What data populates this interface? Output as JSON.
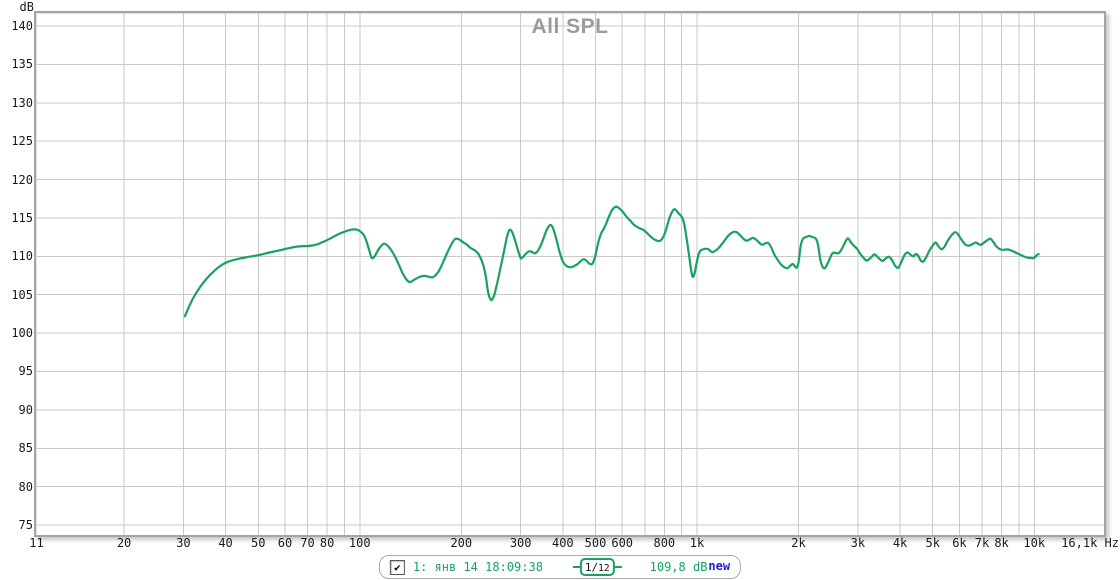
{
  "window": {
    "title": "All SPL"
  },
  "axes": {
    "y": {
      "unit": "dB",
      "view_min": 73.7,
      "view_max": 141.7,
      "tick_labels": [
        140,
        135,
        130,
        125,
        120,
        115,
        110,
        105,
        100,
        95,
        90,
        85,
        80,
        75
      ]
    },
    "x": {
      "unit": "Hz",
      "scale": "log",
      "min_hz": 11,
      "max_hz": 16100,
      "gridlines_hz": [
        20,
        30,
        40,
        50,
        60,
        70,
        80,
        90,
        100,
        200,
        300,
        400,
        500,
        600,
        700,
        800,
        900,
        1000,
        2000,
        3000,
        4000,
        5000,
        6000,
        7000,
        8000,
        9000,
        10000
      ],
      "ticks": [
        {
          "hz": 11,
          "label": "11"
        },
        {
          "hz": 20,
          "label": "20"
        },
        {
          "hz": 30,
          "label": "30"
        },
        {
          "hz": 40,
          "label": "40"
        },
        {
          "hz": 50,
          "label": "50"
        },
        {
          "hz": 60,
          "label": "60"
        },
        {
          "hz": 70,
          "label": "70"
        },
        {
          "hz": 80,
          "label": "80"
        },
        {
          "hz": 100,
          "label": "100"
        },
        {
          "hz": 200,
          "label": "200"
        },
        {
          "hz": 300,
          "label": "300"
        },
        {
          "hz": 400,
          "label": "400"
        },
        {
          "hz": 500,
          "label": "500"
        },
        {
          "hz": 600,
          "label": "600"
        },
        {
          "hz": 800,
          "label": "800"
        },
        {
          "hz": 1000,
          "label": "1k"
        },
        {
          "hz": 2000,
          "label": "2k"
        },
        {
          "hz": 3000,
          "label": "3k"
        },
        {
          "hz": 4000,
          "label": "4k"
        },
        {
          "hz": 5000,
          "label": "5k"
        },
        {
          "hz": 6000,
          "label": "6k"
        },
        {
          "hz": 7000,
          "label": "7k"
        },
        {
          "hz": 8000,
          "label": "8k"
        },
        {
          "hz": 10000,
          "label": "10k"
        },
        {
          "hz": 16100,
          "label": "16,1k Hz",
          "align": "right"
        }
      ]
    }
  },
  "legend": {
    "checkbox_checked": true,
    "check_glyph": "✔",
    "name": "1: янв 14 18:09:38",
    "smoothing": "1/12",
    "level": "109,8 dB",
    "badge": "new"
  },
  "colors": {
    "trace": "#17a25e",
    "grid": "#c9c9c9",
    "plot_border": "#a4a4a4",
    "title": "#9b9b9b",
    "badge": "#2121cd",
    "tick_text": "#1a1a1a"
  },
  "chart_data": {
    "type": "line",
    "title": "All SPL",
    "xlabel": "Hz",
    "ylabel": "dB",
    "x_scale": "log",
    "xlim": [
      11,
      16100
    ],
    "ylim": [
      73.7,
      141.7
    ],
    "grid": true,
    "legend_position": "bottom",
    "series": [
      {
        "name": "1: янв 14 18:09:38",
        "smoothing": "1/12",
        "value_label": "109,8 dB",
        "color": "#17a25e",
        "points_hz_db": [
          [
            30.3,
            102.2
          ],
          [
            31,
            103.2
          ],
          [
            32,
            104.5
          ],
          [
            33.5,
            105.9
          ],
          [
            35,
            107.0
          ],
          [
            37,
            108.1
          ],
          [
            39,
            108.9
          ],
          [
            41,
            109.35
          ],
          [
            44,
            109.7
          ],
          [
            47,
            109.95
          ],
          [
            50,
            110.15
          ],
          [
            54,
            110.5
          ],
          [
            58,
            110.8
          ],
          [
            62,
            111.1
          ],
          [
            66,
            111.3
          ],
          [
            70,
            111.35
          ],
          [
            74,
            111.5
          ],
          [
            78,
            111.9
          ],
          [
            82,
            112.35
          ],
          [
            86,
            112.85
          ],
          [
            90,
            113.2
          ],
          [
            95,
            113.5
          ],
          [
            99,
            113.4
          ],
          [
            103,
            112.7
          ],
          [
            106,
            111.2
          ],
          [
            108.5,
            109.8
          ],
          [
            111,
            110.1
          ],
          [
            114,
            111.0
          ],
          [
            118,
            111.65
          ],
          [
            122,
            111.2
          ],
          [
            126,
            110.3
          ],
          [
            130,
            109.1
          ],
          [
            134,
            107.8
          ],
          [
            138,
            106.9
          ],
          [
            141,
            106.65
          ],
          [
            145,
            106.95
          ],
          [
            150,
            107.3
          ],
          [
            155,
            107.45
          ],
          [
            160,
            107.35
          ],
          [
            165,
            107.3
          ],
          [
            171,
            108.0
          ],
          [
            176,
            109.1
          ],
          [
            181,
            110.3
          ],
          [
            186,
            111.4
          ],
          [
            191,
            112.2
          ],
          [
            194,
            112.3
          ],
          [
            198,
            112.15
          ],
          [
            203,
            111.8
          ],
          [
            208,
            111.5
          ],
          [
            213,
            111.1
          ],
          [
            219,
            110.8
          ],
          [
            225,
            110.3
          ],
          [
            231,
            109.2
          ],
          [
            236,
            107.6
          ],
          [
            240,
            105.4
          ],
          [
            244,
            104.4
          ],
          [
            247,
            104.4
          ],
          [
            251,
            105.1
          ],
          [
            256,
            106.7
          ],
          [
            262,
            108.7
          ],
          [
            268,
            110.8
          ],
          [
            273,
            112.5
          ],
          [
            277,
            113.35
          ],
          [
            280,
            113.45
          ],
          [
            284,
            113.0
          ],
          [
            289,
            112.0
          ],
          [
            294,
            110.9
          ],
          [
            299,
            109.9
          ],
          [
            302,
            109.75
          ],
          [
            306,
            110.0
          ],
          [
            311,
            110.35
          ],
          [
            316,
            110.6
          ],
          [
            321,
            110.65
          ],
          [
            326,
            110.5
          ],
          [
            331,
            110.4
          ],
          [
            337,
            110.7
          ],
          [
            344,
            111.4
          ],
          [
            351,
            112.4
          ],
          [
            358,
            113.4
          ],
          [
            364,
            113.95
          ],
          [
            368,
            114.1
          ],
          [
            373,
            113.8
          ],
          [
            379,
            112.9
          ],
          [
            385,
            111.8
          ],
          [
            391,
            110.6
          ],
          [
            397,
            109.7
          ],
          [
            403,
            109.1
          ],
          [
            410,
            108.75
          ],
          [
            417,
            108.6
          ],
          [
            425,
            108.6
          ],
          [
            433,
            108.75
          ],
          [
            441,
            108.95
          ],
          [
            449,
            109.25
          ],
          [
            457,
            109.55
          ],
          [
            464,
            109.6
          ],
          [
            471,
            109.4
          ],
          [
            478,
            109.1
          ],
          [
            486,
            108.95
          ],
          [
            492,
            109.2
          ],
          [
            499,
            110.0
          ],
          [
            506,
            111.2
          ],
          [
            513,
            112.3
          ],
          [
            521,
            113.1
          ],
          [
            529,
            113.6
          ],
          [
            537,
            114.2
          ],
          [
            546,
            115.0
          ],
          [
            556,
            115.8
          ],
          [
            566,
            116.3
          ],
          [
            574,
            116.45
          ],
          [
            582,
            116.4
          ],
          [
            591,
            116.15
          ],
          [
            601,
            115.85
          ],
          [
            612,
            115.4
          ],
          [
            624,
            114.95
          ],
          [
            637,
            114.55
          ],
          [
            651,
            114.1
          ],
          [
            666,
            113.8
          ],
          [
            681,
            113.6
          ],
          [
            696,
            113.4
          ],
          [
            712,
            113.0
          ],
          [
            728,
            112.6
          ],
          [
            744,
            112.25
          ],
          [
            760,
            112.05
          ],
          [
            775,
            112.0
          ],
          [
            790,
            112.35
          ],
          [
            804,
            113.1
          ],
          [
            818,
            114.2
          ],
          [
            832,
            115.2
          ],
          [
            846,
            115.9
          ],
          [
            858,
            116.15
          ],
          [
            871,
            115.9
          ],
          [
            886,
            115.5
          ],
          [
            901,
            115.15
          ],
          [
            916,
            114.2
          ],
          [
            931,
            112.4
          ],
          [
            946,
            110.3
          ],
          [
            959,
            108.4
          ],
          [
            970,
            107.35
          ],
          [
            982,
            107.7
          ],
          [
            995,
            108.9
          ],
          [
            1009,
            110.1
          ],
          [
            1024,
            110.75
          ],
          [
            1042,
            110.9
          ],
          [
            1062,
            111.0
          ],
          [
            1083,
            110.9
          ],
          [
            1108,
            110.55
          ],
          [
            1135,
            110.75
          ],
          [
            1165,
            111.2
          ],
          [
            1200,
            111.9
          ],
          [
            1238,
            112.7
          ],
          [
            1272,
            113.1
          ],
          [
            1303,
            113.2
          ],
          [
            1335,
            112.85
          ],
          [
            1365,
            112.4
          ],
          [
            1398,
            112.05
          ],
          [
            1432,
            112.2
          ],
          [
            1465,
            112.4
          ],
          [
            1499,
            112.15
          ],
          [
            1531,
            111.75
          ],
          [
            1562,
            111.5
          ],
          [
            1594,
            111.7
          ],
          [
            1625,
            111.75
          ],
          [
            1658,
            111.2
          ],
          [
            1693,
            110.3
          ],
          [
            1731,
            109.6
          ],
          [
            1770,
            109.0
          ],
          [
            1812,
            108.6
          ],
          [
            1853,
            108.45
          ],
          [
            1892,
            108.8
          ],
          [
            1922,
            109.0
          ],
          [
            1951,
            108.7
          ],
          [
            1977,
            108.55
          ],
          [
            2003,
            109.4
          ],
          [
            2032,
            111.5
          ],
          [
            2062,
            112.3
          ],
          [
            2102,
            112.5
          ],
          [
            2152,
            112.65
          ],
          [
            2203,
            112.5
          ],
          [
            2252,
            112.3
          ],
          [
            2287,
            111.4
          ],
          [
            2322,
            109.5
          ],
          [
            2360,
            108.6
          ],
          [
            2400,
            108.5
          ],
          [
            2452,
            109.3
          ],
          [
            2520,
            110.4
          ],
          [
            2572,
            110.45
          ],
          [
            2625,
            110.4
          ],
          [
            2682,
            110.9
          ],
          [
            2740,
            111.7
          ],
          [
            2800,
            112.35
          ],
          [
            2861,
            111.8
          ],
          [
            2923,
            111.35
          ],
          [
            2986,
            110.95
          ],
          [
            3051,
            110.3
          ],
          [
            3118,
            109.8
          ],
          [
            3186,
            109.45
          ],
          [
            3280,
            109.85
          ],
          [
            3360,
            110.25
          ],
          [
            3452,
            109.8
          ],
          [
            3540,
            109.4
          ],
          [
            3622,
            109.7
          ],
          [
            3700,
            109.95
          ],
          [
            3782,
            109.55
          ],
          [
            3865,
            108.8
          ],
          [
            3950,
            108.5
          ],
          [
            4040,
            109.3
          ],
          [
            4128,
            110.2
          ],
          [
            4215,
            110.5
          ],
          [
            4300,
            110.2
          ],
          [
            4382,
            110.0
          ],
          [
            4452,
            110.3
          ],
          [
            4525,
            110.1
          ],
          [
            4600,
            109.5
          ],
          [
            4682,
            109.3
          ],
          [
            4770,
            109.8
          ],
          [
            4882,
            110.7
          ],
          [
            4998,
            111.4
          ],
          [
            5100,
            111.8
          ],
          [
            5205,
            111.3
          ],
          [
            5312,
            110.9
          ],
          [
            5425,
            111.3
          ],
          [
            5550,
            112.1
          ],
          [
            5700,
            112.8
          ],
          [
            5832,
            113.15
          ],
          [
            5952,
            112.8
          ],
          [
            6102,
            112.1
          ],
          [
            6255,
            111.5
          ],
          [
            6400,
            111.4
          ],
          [
            6555,
            111.6
          ],
          [
            6712,
            111.8
          ],
          [
            6832,
            111.6
          ],
          [
            6952,
            111.5
          ],
          [
            7102,
            111.8
          ],
          [
            7255,
            112.1
          ],
          [
            7402,
            112.3
          ],
          [
            7555,
            111.9
          ],
          [
            7702,
            111.35
          ],
          [
            7900,
            110.95
          ],
          [
            8102,
            110.85
          ],
          [
            8302,
            110.9
          ],
          [
            8502,
            110.8
          ],
          [
            8705,
            110.6
          ],
          [
            8902,
            110.4
          ],
          [
            9100,
            110.2
          ],
          [
            9302,
            110.0
          ],
          [
            9502,
            109.85
          ],
          [
            9700,
            109.8
          ],
          [
            9900,
            109.75
          ],
          [
            10055,
            109.9
          ],
          [
            10202,
            110.2
          ],
          [
            10302,
            110.3
          ]
        ]
      }
    ]
  }
}
